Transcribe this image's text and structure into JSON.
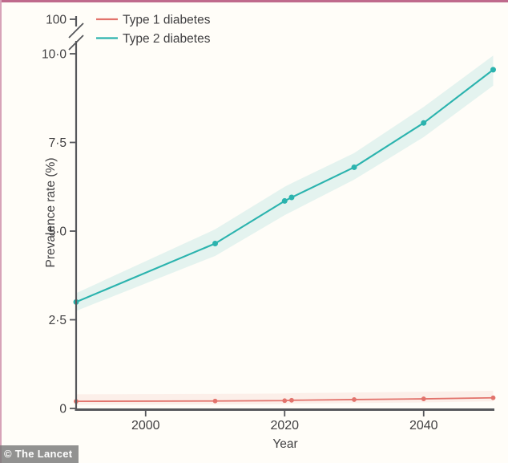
{
  "page": {
    "watermark": "© The Lancet",
    "accent_border_color": "#bf6a8c",
    "background_color": "#fffdf8"
  },
  "chart_data": {
    "type": "line",
    "title": "",
    "xlabel": "Year",
    "ylabel": "Prevalence rate (%)",
    "legend_position": "top-left",
    "grid": "off",
    "x_axis": {
      "min": 1990,
      "max": 2050,
      "ticks": [
        {
          "value": 2000,
          "label": "2000"
        },
        {
          "value": 2020,
          "label": "2020"
        },
        {
          "value": 2040,
          "label": "2040"
        }
      ]
    },
    "y_axis": {
      "min": 0,
      "max": 10,
      "ticks": [
        {
          "value": 0,
          "label": "0"
        },
        {
          "value": 2.5,
          "label": "2·5"
        },
        {
          "value": 5,
          "label": "5·0"
        },
        {
          "value": 7.5,
          "label": "7·5"
        },
        {
          "value": 10,
          "label": "10·0"
        }
      ],
      "axis_break": {
        "present": true,
        "top_label": "100",
        "between": [
          "10·0",
          "100"
        ]
      }
    },
    "x": [
      1990,
      2010,
      2020,
      2021,
      2030,
      2040,
      2050
    ],
    "series": [
      {
        "name": "Type 1 diabetes",
        "color": "#e2736c",
        "band_color": "rgba(226,115,108,0.10)",
        "values": [
          0.2,
          0.21,
          0.22,
          0.23,
          0.25,
          0.27,
          0.3
        ],
        "band_upper": [
          0.4,
          0.41,
          0.42,
          0.43,
          0.45,
          0.47,
          0.5
        ],
        "band_lower": [
          0.1,
          0.11,
          0.12,
          0.13,
          0.15,
          0.17,
          0.2
        ]
      },
      {
        "name": "Type 2 diabetes",
        "color": "#2bb3ae",
        "band_color": "rgba(43,179,174,0.13)",
        "values": [
          3.0,
          4.65,
          5.85,
          5.95,
          6.8,
          8.05,
          9.55
        ],
        "band_upper": [
          3.25,
          5.05,
          6.25,
          6.35,
          7.2,
          8.5,
          9.95
        ],
        "band_lower": [
          2.75,
          4.3,
          5.45,
          5.55,
          6.45,
          7.65,
          9.1
        ]
      }
    ]
  }
}
